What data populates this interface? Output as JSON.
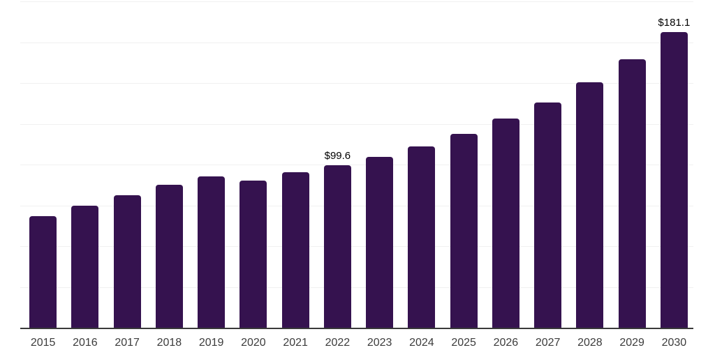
{
  "chart_data": {
    "type": "bar",
    "title": "",
    "xlabel": "",
    "ylabel": "",
    "categories": [
      "2015",
      "2016",
      "2017",
      "2018",
      "2019",
      "2020",
      "2021",
      "2022",
      "2023",
      "2024",
      "2025",
      "2026",
      "2027",
      "2028",
      "2029",
      "2030"
    ],
    "values": [
      68.2,
      74.6,
      81.3,
      87.6,
      92.6,
      90.0,
      95.1,
      99.6,
      104.7,
      110.9,
      118.9,
      128.2,
      138.2,
      150.4,
      164.6,
      181.1
    ],
    "point_labels": [
      "",
      "",
      "",
      "",
      "",
      "",
      "",
      "$99.6",
      "",
      "",
      "",
      "",
      "",
      "",
      "",
      "$181.1"
    ],
    "ylim": [
      0,
      200
    ],
    "grid_step": 25,
    "grid": true,
    "legend_position": "none",
    "y_axis_labels_visible": false,
    "colors": {
      "bar": "#35124f",
      "gridline": "#f0f0f0",
      "axis_line": "#3a3a3a",
      "x_label": "#3c3c3c",
      "value_label": "#000000",
      "background": "#ffffff"
    }
  }
}
